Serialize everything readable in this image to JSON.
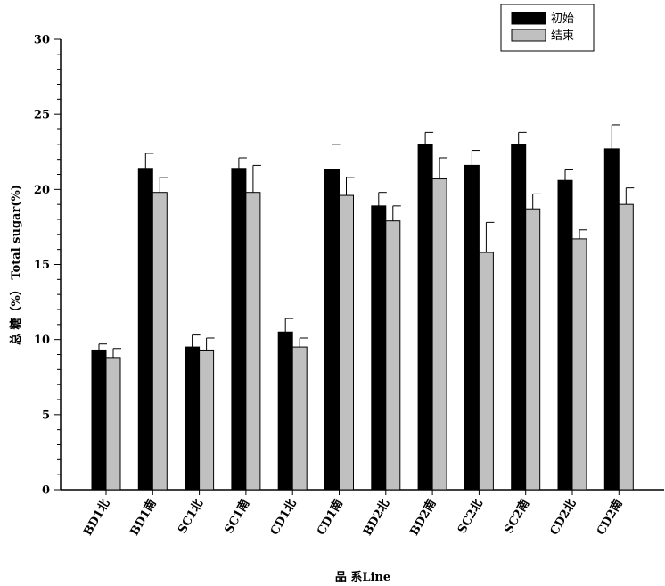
{
  "chart_data": {
    "type": "bar",
    "xlabel": "品 系Line",
    "ylabel": "总 糖（%） Total sugar(%)",
    "ylim": [
      0,
      30
    ],
    "yticks": [
      0,
      5,
      10,
      15,
      20,
      25,
      30
    ],
    "grid": false,
    "legend_position": "top-right",
    "categories": [
      "BD1北",
      "BD1南",
      "SC1北",
      "SC1南",
      "CD1北",
      "CD1南",
      "BD2北",
      "BD2南",
      "SC2北",
      "SC2南",
      "CD2北",
      "CD2南"
    ],
    "series": [
      {
        "name": "初始",
        "color": "#000000",
        "values": [
          9.3,
          21.4,
          9.5,
          21.4,
          10.5,
          21.3,
          18.9,
          23.0,
          21.6,
          23.0,
          20.6,
          22.7
        ],
        "errors": [
          0.4,
          1.0,
          0.8,
          0.7,
          0.9,
          1.7,
          0.9,
          0.8,
          1.0,
          0.8,
          0.7,
          1.6
        ]
      },
      {
        "name": "结束",
        "color": "#c0c0c0",
        "values": [
          8.8,
          19.8,
          9.3,
          19.8,
          9.5,
          19.6,
          17.9,
          20.7,
          15.8,
          18.7,
          16.7,
          19.0
        ],
        "errors": [
          0.6,
          1.0,
          0.8,
          1.8,
          0.6,
          1.2,
          1.0,
          1.4,
          2.0,
          1.0,
          0.6,
          1.1
        ]
      }
    ]
  }
}
